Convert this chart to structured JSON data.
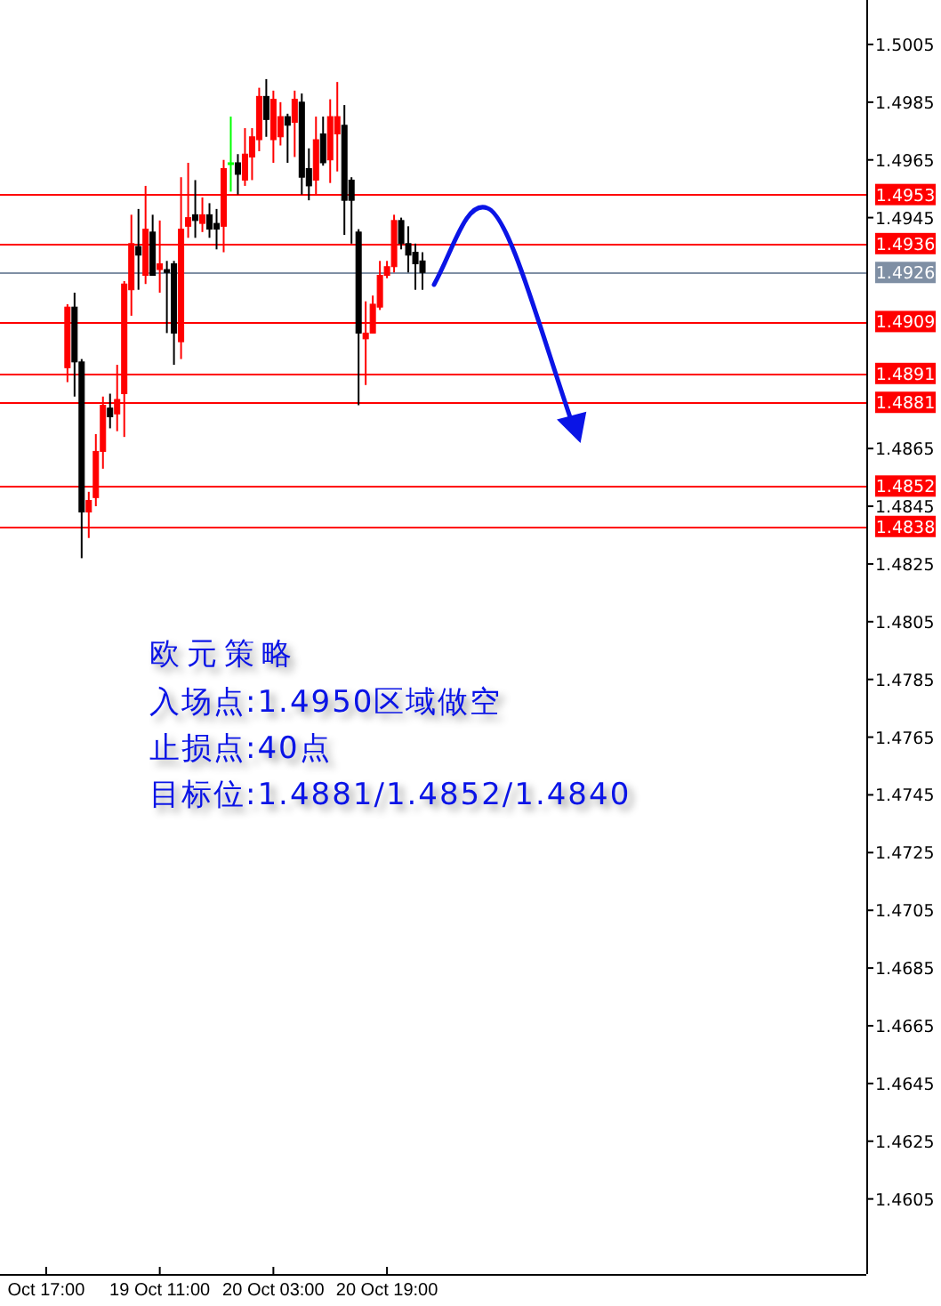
{
  "chart_data": {
    "type": "candlestick",
    "categories": [
      null,
      null,
      null,
      null,
      null,
      null,
      "Oct 17:00",
      null,
      null,
      null,
      null,
      null,
      null,
      null,
      null,
      null,
      null,
      null,
      null,
      null,
      null,
      null,
      "19 Oct 11:00",
      null,
      null,
      null,
      null,
      null,
      null,
      null,
      null,
      null,
      null,
      null,
      null,
      null,
      null,
      null,
      "20 Oct 03:00",
      null,
      null,
      null,
      null,
      null,
      null,
      null,
      null,
      null,
      null,
      null,
      null,
      null,
      null,
      null,
      "20 Oct 19:00",
      null,
      null,
      null,
      null,
      null,
      null,
      null,
      null,
      null,
      null,
      null,
      null,
      null,
      null,
      null,
      null,
      null,
      null,
      null,
      null,
      null,
      null,
      null,
      null,
      null,
      null,
      null,
      null,
      null,
      null,
      null,
      null,
      null,
      null,
      null,
      null,
      null,
      null,
      null,
      null,
      null,
      null,
      null,
      null,
      null,
      null,
      null,
      null,
      null,
      null,
      null,
      null,
      null,
      null,
      null,
      null,
      null,
      null,
      null,
      null,
      null,
      null,
      null,
      null,
      null,
      null,
      null
    ],
    "ohlc": [
      null,
      null,
      null,
      null,
      null,
      null,
      null,
      null,
      null,
      [
        1.4893,
        1.4915,
        1.4888,
        1.4914
      ],
      [
        1.4914,
        1.4919,
        1.4883,
        1.4895
      ],
      [
        1.4895,
        1.4896,
        1.4827,
        1.4843
      ],
      [
        1.4843,
        1.485,
        1.4834,
        1.4847
      ],
      [
        1.4848,
        1.487,
        1.4845,
        1.4864
      ],
      [
        1.4864,
        1.4883,
        1.4858,
        1.488
      ],
      [
        1.4879,
        1.4884,
        1.4872,
        1.4876
      ],
      [
        1.4877,
        1.4894,
        1.4871,
        1.4882
      ],
      [
        1.4884,
        1.4923,
        1.4869,
        1.4922
      ],
      [
        1.492,
        1.4946,
        1.4911,
        1.4936
      ],
      [
        1.4935,
        1.4948,
        1.492,
        1.4932
      ],
      [
        1.4925,
        1.4956,
        1.4922,
        1.4941
      ],
      [
        1.494,
        1.4946,
        1.4925,
        1.4925
      ],
      [
        1.4927,
        1.4944,
        1.4919,
        1.4929
      ],
      [
        1.4927,
        1.493,
        1.4905,
        1.4926
      ],
      [
        1.4929,
        1.493,
        1.4894,
        1.4905
      ],
      [
        1.4902,
        1.4959,
        1.4896,
        1.4941
      ],
      [
        1.4942,
        1.4964,
        1.4938,
        1.4945
      ],
      [
        1.4946,
        1.4958,
        1.4938,
        1.4944
      ],
      [
        1.4943,
        1.4952,
        1.494,
        1.4946
      ],
      [
        1.4946,
        1.495,
        1.4938,
        1.4941
      ],
      [
        1.4943,
        1.4948,
        1.4934,
        1.4941
      ],
      [
        1.4942,
        1.4965,
        1.4933,
        1.4962
      ],
      [
        1.4964,
        1.498,
        1.4954,
        1.4964
      ],
      [
        1.4964,
        1.4967,
        1.4953,
        1.496
      ],
      [
        1.4958,
        1.4976,
        1.4956,
        1.4967
      ],
      [
        1.4966,
        1.4976,
        1.4958,
        1.4973
      ],
      [
        1.4972,
        1.499,
        1.4968,
        1.4987
      ],
      [
        1.4987,
        1.4993,
        1.4973,
        1.4979
      ],
      [
        1.4972,
        1.4989,
        1.4964,
        1.4986
      ],
      [
        1.4973,
        1.4985,
        1.497,
        1.498
      ],
      [
        1.498,
        1.4981,
        1.4964,
        1.4977
      ],
      [
        1.4978,
        1.4989,
        1.4966,
        1.4986
      ],
      [
        1.4985,
        1.4988,
        1.4953,
        1.4959
      ],
      [
        1.4962,
        1.4969,
        1.4951,
        1.4956
      ],
      [
        1.4958,
        1.498,
        1.4953,
        1.4972
      ],
      [
        1.4974,
        1.498,
        1.4963,
        1.4964
      ],
      [
        1.4965,
        1.4986,
        1.4957,
        1.498
      ],
      [
        1.4974,
        1.4992,
        1.4961,
        1.498
      ],
      [
        1.4977,
        1.4984,
        1.4939,
        1.4951
      ],
      [
        1.4958,
        1.4959,
        1.4936,
        1.4951
      ],
      [
        1.494,
        1.4941,
        1.488,
        1.4905
      ],
      [
        1.4903,
        1.4916,
        1.4887,
        1.4905
      ],
      [
        1.4905,
        1.4918,
        1.4905,
        1.4915
      ],
      [
        1.4914,
        1.493,
        1.4913,
        1.4925
      ],
      [
        1.4925,
        1.493,
        1.4924,
        1.4928
      ],
      [
        1.4928,
        1.4946,
        1.4926,
        1.4944
      ],
      [
        1.4944,
        1.4945,
        1.4934,
        1.4936
      ],
      [
        1.4936,
        1.4942,
        1.4926,
        1.4932
      ],
      [
        1.4933,
        1.4936,
        1.492,
        1.4929
      ],
      [
        1.493,
        1.4933,
        1.492,
        1.4926
      ],
      null,
      null,
      null,
      null,
      null,
      null,
      null,
      null,
      null,
      null,
      null,
      null,
      null,
      null,
      null,
      null,
      null,
      null,
      null,
      null,
      null,
      null,
      null,
      null,
      null,
      null,
      null,
      null,
      null,
      null,
      null,
      null,
      null,
      null,
      null,
      null,
      null,
      null,
      null,
      null,
      null,
      null,
      null,
      null,
      null,
      null,
      null,
      null,
      null,
      null,
      null,
      null,
      null,
      null,
      null,
      null,
      null,
      null,
      null,
      null,
      null,
      null
    ],
    "colors": [
      null,
      null,
      null,
      null,
      null,
      null,
      null,
      null,
      null,
      "#ff0000",
      "#000000",
      "#000000",
      "#ff0000",
      "#ff0000",
      "#ff0000",
      "#000000",
      "#ff0000",
      "#ff0000",
      "#ff0000",
      "#000000",
      "#ff0000",
      "#000000",
      "#ff0000",
      "#000000",
      "#000000",
      "#ff0000",
      "#ff0000",
      "#000000",
      "#ff0000",
      "#000000",
      "#000000",
      "#ff0000",
      "#00ff00",
      "#000000",
      "#ff0000",
      "#ff0000",
      "#ff0000",
      "#000000",
      "#ff0000",
      "#ff0000",
      "#000000",
      "#ff0000",
      "#000000",
      "#000000",
      "#ff0000",
      "#000000",
      "#ff0000",
      "#ff0000",
      "#000000",
      "#000000",
      "#000000",
      "#ff0000",
      "#ff0000",
      "#ff0000",
      "#ff0000",
      "#ff0000",
      "#000000",
      "#000000",
      "#000000",
      "#000000",
      null,
      null,
      null,
      null,
      null,
      null,
      null,
      null,
      null,
      null,
      null,
      null,
      null,
      null,
      null,
      null,
      null,
      null,
      null,
      null,
      null,
      null,
      null,
      null,
      null,
      null,
      null,
      null,
      null,
      null,
      null,
      null,
      null,
      null,
      null,
      null,
      null,
      null,
      null,
      null,
      null,
      null,
      null,
      null,
      null,
      null,
      null,
      null,
      null,
      null,
      null,
      null,
      null,
      null,
      null,
      null,
      null,
      null,
      null,
      null,
      null,
      null
    ],
    "ylim": [
      1.4579,
      1.50204
    ],
    "yticks": [
      1.5005,
      1.4985,
      1.4965,
      1.4945,
      1.4865,
      1.4845,
      1.4825,
      1.4805,
      1.4785,
      1.4765,
      1.4745,
      1.4725,
      1.4705,
      1.4685,
      1.4665,
      1.4645,
      1.4625,
      1.4605
    ],
    "ref_lines": [
      {
        "axis": "y",
        "value": 1.4953,
        "label": "1.4953",
        "color": "#ff0000"
      },
      {
        "axis": "y",
        "value": 1.4936,
        "label": "1.4936",
        "color": "#ff0000"
      },
      {
        "axis": "y",
        "value": 1.4926,
        "label": "1.4926",
        "color": "#7f8fa4"
      },
      {
        "axis": "y",
        "value": 1.4909,
        "label": "1.4909",
        "color": "#ff0000"
      },
      {
        "axis": "y",
        "value": 1.4891,
        "label": "1.4891",
        "color": "#ff0000"
      },
      {
        "axis": "y",
        "value": 1.4881,
        "label": "1.4881",
        "color": "#ff0000"
      },
      {
        "axis": "y",
        "value": 1.4852,
        "label": "1.4852",
        "color": "#ff0000"
      },
      {
        "axis": "y",
        "value": 1.4838,
        "label": "1.4838",
        "color": "#ff0000"
      }
    ],
    "annotations": [
      "欧元策略",
      "入场点:1.4950区域做空",
      "止损点:40点",
      "目标位:1.4881/1.4852/1.4840"
    ],
    "grid": false
  }
}
